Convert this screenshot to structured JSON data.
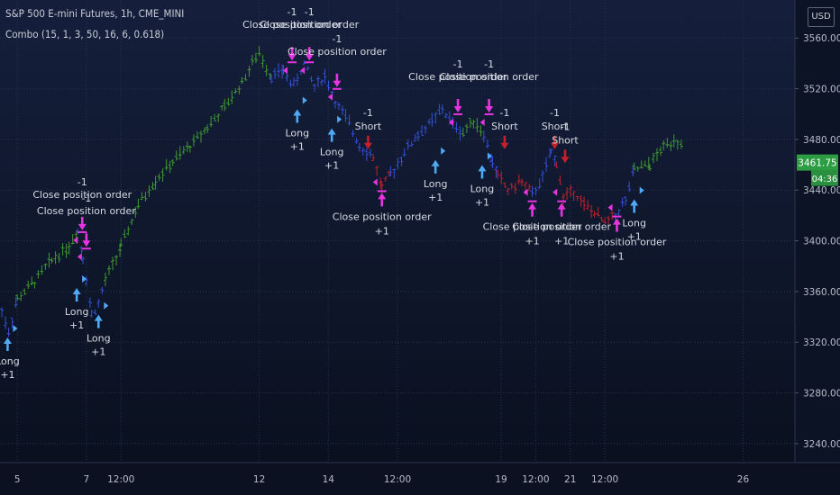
{
  "header": {
    "symbol_title": "S&P 500 E-mini Futures, 1h, CME_MINI",
    "indicator_legend": "Combo (15, 1, 3, 50, 16, 6, 0.618)",
    "currency": "USD"
  },
  "colors": {
    "background_top": "#151f3c",
    "background_bottom": "#090f1c",
    "grid": "#26324c",
    "axis_text": "#b7bcc8",
    "bar_green": "#3f9a2e",
    "bar_blue": "#3350d8",
    "bar_red": "#c4202b",
    "arrow_long": "#4fa9f5",
    "arrow_close": "#e534e0",
    "price_badge": "#2d9d43",
    "signal_text": "#d6dae2"
  },
  "chart_data": {
    "type": "bar",
    "title": "S&P 500 E-mini Futures, 1h, CME_MINI",
    "ylim": [
      3225,
      3590
    ],
    "grid": true,
    "y_ticks": [
      "3560.00",
      "3520.00",
      "3480.00",
      "3440.00",
      "3400.00",
      "3360.00",
      "3320.00",
      "3280.00",
      "3240.00"
    ],
    "y_tick_values": [
      3560,
      3520,
      3480,
      3440,
      3400,
      3360,
      3320,
      3280,
      3240
    ],
    "x_ticks": [
      {
        "label": "5",
        "x": 5
      },
      {
        "label": "7",
        "x": 7
      },
      {
        "label": "12:00",
        "x": 8
      },
      {
        "label": "12",
        "x": 12
      },
      {
        "label": "14",
        "x": 14
      },
      {
        "label": "12:00",
        "x": 16
      },
      {
        "label": "19",
        "x": 19
      },
      {
        "label": "12:00",
        "x": 20
      },
      {
        "label": "21",
        "x": 21
      },
      {
        "label": "12:00",
        "x": 22
      },
      {
        "label": "26",
        "x": 26
      }
    ],
    "x_range": [
      4.5,
      27.5
    ],
    "last_price": {
      "value": 3461.75,
      "label": "3461.75",
      "countdown": "04:36"
    },
    "series": [
      {
        "color": "blue",
        "points": [
          [
            4.45,
            3355
          ],
          [
            4.75,
            3328
          ],
          [
            5.0,
            3354
          ]
        ]
      },
      {
        "color": "green",
        "points": [
          [
            5.0,
            3354
          ],
          [
            5.5,
            3368
          ],
          [
            6.0,
            3385
          ],
          [
            6.5,
            3396
          ],
          [
            6.75,
            3408
          ]
        ]
      },
      {
        "color": "blue",
        "points": [
          [
            6.75,
            3408
          ],
          [
            6.9,
            3388
          ],
          [
            7.0,
            3370
          ],
          [
            7.15,
            3342
          ],
          [
            7.35,
            3350
          ],
          [
            7.55,
            3369
          ]
        ]
      },
      {
        "color": "green",
        "points": [
          [
            7.55,
            3369
          ],
          [
            8.0,
            3395
          ],
          [
            8.5,
            3428
          ],
          [
            9.0,
            3448
          ],
          [
            9.5,
            3462
          ],
          [
            10.0,
            3475
          ],
          [
            10.5,
            3490
          ],
          [
            11.0,
            3505
          ],
          [
            11.5,
            3525
          ],
          [
            11.8,
            3540
          ],
          [
            12.0,
            3548
          ],
          [
            12.35,
            3530
          ]
        ]
      },
      {
        "color": "blue",
        "points": [
          [
            12.35,
            3530
          ],
          [
            12.7,
            3534
          ],
          [
            13.0,
            3522
          ],
          [
            13.3,
            3540
          ],
          [
            13.6,
            3522
          ],
          [
            13.9,
            3530
          ],
          [
            14.2,
            3510
          ],
          [
            14.5,
            3497
          ],
          [
            14.9,
            3476
          ],
          [
            15.3,
            3466
          ]
        ]
      },
      {
        "color": "red",
        "points": [
          [
            15.3,
            3466
          ],
          [
            15.55,
            3442
          ],
          [
            15.8,
            3452
          ]
        ]
      },
      {
        "color": "blue",
        "points": [
          [
            15.8,
            3452
          ],
          [
            16.2,
            3470
          ],
          [
            16.6,
            3484
          ],
          [
            17.0,
            3494
          ],
          [
            17.3,
            3504
          ],
          [
            17.6,
            3492
          ],
          [
            17.9,
            3485
          ]
        ]
      },
      {
        "color": "green",
        "points": [
          [
            17.9,
            3485
          ],
          [
            18.2,
            3496
          ],
          [
            18.5,
            3484
          ]
        ]
      },
      {
        "color": "blue",
        "points": [
          [
            18.5,
            3484
          ],
          [
            18.75,
            3462
          ],
          [
            18.9,
            3452
          ]
        ]
      },
      {
        "color": "red",
        "points": [
          [
            18.9,
            3452
          ],
          [
            19.2,
            3440
          ],
          [
            19.6,
            3447
          ],
          [
            19.9,
            3436
          ]
        ]
      },
      {
        "color": "blue",
        "points": [
          [
            19.9,
            3436
          ],
          [
            20.2,
            3450
          ],
          [
            20.45,
            3470
          ],
          [
            20.6,
            3462
          ]
        ]
      },
      {
        "color": "red",
        "points": [
          [
            20.6,
            3462
          ],
          [
            20.8,
            3434
          ],
          [
            21.1,
            3440
          ],
          [
            21.4,
            3428
          ],
          [
            21.7,
            3422
          ],
          [
            22.0,
            3414
          ],
          [
            22.3,
            3420
          ]
        ]
      },
      {
        "color": "blue",
        "points": [
          [
            22.3,
            3420
          ],
          [
            22.6,
            3432
          ],
          [
            22.85,
            3456
          ]
        ]
      },
      {
        "color": "green",
        "points": [
          [
            22.85,
            3456
          ],
          [
            23.3,
            3460
          ],
          [
            23.7,
            3474
          ],
          [
            24.0,
            3480
          ],
          [
            24.25,
            3478
          ]
        ]
      }
    ],
    "signals": [
      {
        "kind": "long",
        "x": 4.72,
        "y": 3328,
        "text": [
          "Long",
          "+1"
        ]
      },
      {
        "kind": "long",
        "x": 6.72,
        "y": 3367,
        "text": [
          "Long",
          "+1"
        ]
      },
      {
        "kind": "close_long",
        "x": 6.88,
        "y": 3404,
        "text": [
          "-1",
          "Close position order"
        ]
      },
      {
        "kind": "close_long",
        "x": 7.0,
        "y": 3391,
        "text": [
          "-1",
          "Close position order"
        ]
      },
      {
        "kind": "long",
        "x": 7.35,
        "y": 3346,
        "text": [
          "Long",
          "+1"
        ]
      },
      {
        "kind": "close_long",
        "x": 12.95,
        "y": 3538,
        "text": [
          "-1",
          "Close position order"
        ]
      },
      {
        "kind": "close_long",
        "x": 13.45,
        "y": 3538,
        "text": [
          "-1",
          "Close position order"
        ]
      },
      {
        "kind": "long",
        "x": 13.1,
        "y": 3508,
        "text": [
          "Long",
          "+1"
        ]
      },
      {
        "kind": "long",
        "x": 14.1,
        "y": 3493,
        "text": [
          "Long",
          "+1"
        ]
      },
      {
        "kind": "close_long",
        "x": 14.25,
        "y": 3517,
        "text": [
          "-1",
          "Close position order"
        ]
      },
      {
        "kind": "short",
        "x": 15.15,
        "y": 3468,
        "text": [
          "-1",
          "Short"
        ]
      },
      {
        "kind": "close_short",
        "x": 15.55,
        "y": 3442,
        "text": [
          "Close position order",
          "+1"
        ]
      },
      {
        "kind": "long",
        "x": 17.1,
        "y": 3468,
        "text": [
          "Long",
          "+1"
        ]
      },
      {
        "kind": "close_long",
        "x": 17.75,
        "y": 3497,
        "text": [
          "-1",
          "Close position order"
        ]
      },
      {
        "kind": "long",
        "x": 18.45,
        "y": 3464,
        "text": [
          "Long",
          "+1"
        ]
      },
      {
        "kind": "close_long",
        "x": 18.65,
        "y": 3497,
        "text": [
          "-1",
          "Close position order"
        ]
      },
      {
        "kind": "short",
        "x": 19.1,
        "y": 3468,
        "text": [
          "-1",
          "Short"
        ]
      },
      {
        "kind": "close_short",
        "x": 19.9,
        "y": 3434,
        "text": [
          "Close position order",
          "+1"
        ]
      },
      {
        "kind": "short",
        "x": 20.55,
        "y": 3468,
        "text": [
          "-1",
          "Short"
        ]
      },
      {
        "kind": "short",
        "x": 20.85,
        "y": 3457,
        "text": [
          "-1",
          "Short"
        ]
      },
      {
        "kind": "close_short",
        "x": 20.75,
        "y": 3434,
        "text": [
          "Close position order",
          "+1"
        ]
      },
      {
        "kind": "close_short",
        "x": 22.35,
        "y": 3422,
        "text": [
          "Close position order",
          "+1"
        ]
      },
      {
        "kind": "long",
        "x": 22.85,
        "y": 3437,
        "text": [
          "Long",
          "+1"
        ]
      }
    ]
  }
}
